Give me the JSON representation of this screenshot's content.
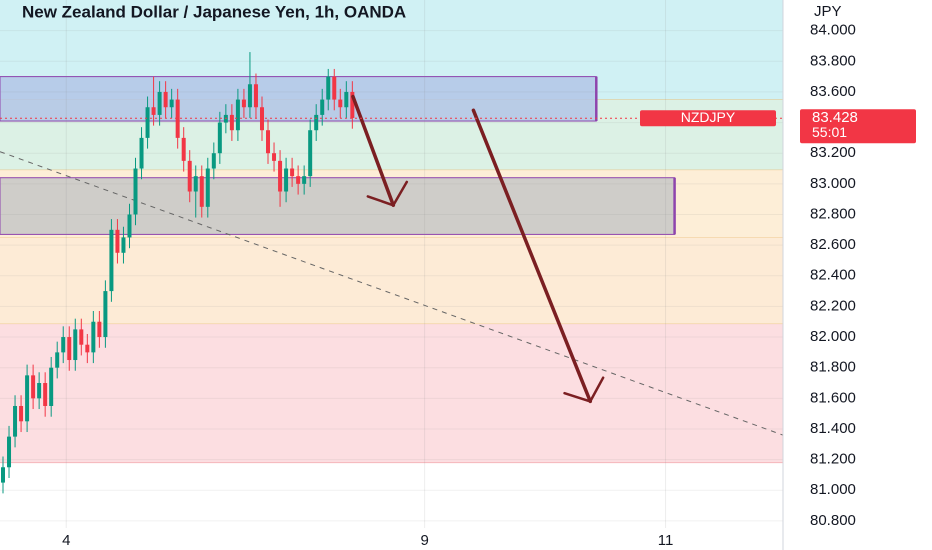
{
  "chart_data": {
    "type": "candlestick",
    "title": "New Zealand Dollar / Japanese Yen, 1h, OANDA",
    "y_unit": "JPY",
    "symbol": "NZDJPY",
    "last_price": 83.428,
    "countdown": "55:01",
    "up_color": "#089981",
    "down_color": "#f23645",
    "xlim": [
      0,
      130
    ],
    "ylim": [
      80.61,
      84.2
    ],
    "xticks": [
      {
        "value": 11,
        "label": "4"
      },
      {
        "value": 70.5,
        "label": "9"
      },
      {
        "value": 110.5,
        "label": "11"
      }
    ],
    "yticks": [
      {
        "value": 80.8,
        "label": "80.800"
      },
      {
        "value": 81.0,
        "label": "81.000"
      },
      {
        "value": 81.2,
        "label": "81.200"
      },
      {
        "value": 81.4,
        "label": "81.400"
      },
      {
        "value": 81.6,
        "label": "81.600"
      },
      {
        "value": 81.8,
        "label": "81.800"
      },
      {
        "value": 82.0,
        "label": "82.000"
      },
      {
        "value": 82.2,
        "label": "82.200"
      },
      {
        "value": 82.4,
        "label": "82.400"
      },
      {
        "value": 82.6,
        "label": "82.600"
      },
      {
        "value": 82.8,
        "label": "82.800"
      },
      {
        "value": 83.0,
        "label": "83.000"
      },
      {
        "value": 83.2,
        "label": "83.200"
      },
      {
        "value": 83.4,
        "label": "83.400"
      },
      {
        "value": 83.6,
        "label": "83.600"
      },
      {
        "value": 83.8,
        "label": "83.800"
      },
      {
        "value": 84.0,
        "label": "84.000"
      }
    ],
    "grid": true,
    "zones": [
      {
        "x": [
          0,
          130
        ],
        "y": [
          83.55,
          84.2
        ],
        "color": "#c8eef2"
      },
      {
        "x": [
          0,
          130
        ],
        "y": [
          83.09,
          83.55
        ],
        "color": "#d6efe0"
      },
      {
        "x": [
          0,
          130
        ],
        "y": [
          82.65,
          83.09
        ],
        "color": "#fdebd0"
      },
      {
        "x": [
          0,
          130
        ],
        "y": [
          82.085,
          82.65
        ],
        "color": "#fde7cf"
      },
      {
        "x": [
          0,
          130
        ],
        "y": [
          81.18,
          82.085
        ],
        "color": "#fbd8dc"
      },
      {
        "x": [
          0,
          112
        ],
        "y": [
          82.67,
          83.04
        ],
        "color": "#c7c7c7",
        "edge": "#8e44ad"
      },
      {
        "x": [
          0,
          99
        ],
        "y": [
          83.41,
          83.7
        ],
        "color": "#b3c6e6",
        "edge": "#8e44ad"
      }
    ],
    "trend_line": {
      "x": [
        0,
        130
      ],
      "y": [
        83.21,
        81.36
      ],
      "color": "#666666"
    },
    "arrows": [
      {
        "x": [
          58.6,
          65.3
        ],
        "y": [
          83.57,
          82.86
        ],
        "color": "#7b1f22"
      },
      {
        "x": [
          78.6,
          98
        ],
        "y": [
          83.48,
          81.58
        ],
        "color": "#7b1f22"
      }
    ],
    "x": [
      0,
      1,
      2,
      3,
      4,
      5,
      6,
      7,
      8,
      9,
      10,
      11,
      12,
      13,
      14,
      15,
      16,
      17,
      18,
      19,
      20,
      21,
      22,
      23,
      24,
      25,
      26,
      27,
      28,
      29,
      30,
      31,
      32,
      33,
      34,
      35,
      36,
      37,
      38,
      39,
      40,
      41,
      42,
      43,
      44,
      45,
      46,
      47,
      48,
      49,
      50,
      51,
      52,
      53,
      54,
      55,
      56,
      57,
      58
    ],
    "open": [
      81.05,
      81.15,
      81.35,
      81.55,
      81.45,
      81.75,
      81.6,
      81.7,
      81.55,
      81.8,
      81.9,
      82.0,
      81.85,
      82.05,
      81.95,
      81.9,
      82.1,
      82.0,
      82.3,
      82.7,
      82.55,
      82.65,
      82.8,
      83.1,
      83.3,
      83.5,
      83.45,
      83.6,
      83.5,
      83.55,
      83.3,
      83.15,
      82.95,
      83.05,
      82.85,
      83.1,
      83.2,
      83.4,
      83.45,
      83.35,
      83.55,
      83.5,
      83.65,
      83.5,
      83.35,
      83.2,
      83.15,
      82.95,
      83.1,
      83.05,
      83.0,
      83.05,
      83.35,
      83.45,
      83.55,
      83.7,
      83.55,
      83.5,
      83.6
    ],
    "high": [
      81.22,
      81.42,
      81.62,
      81.62,
      81.82,
      81.82,
      81.77,
      81.77,
      81.87,
      81.97,
      82.07,
      82.07,
      82.12,
      82.12,
      82.02,
      82.17,
      82.17,
      82.37,
      82.77,
      82.77,
      82.72,
      82.87,
      83.17,
      83.37,
      83.57,
      83.7,
      83.67,
      83.67,
      83.62,
      83.62,
      83.37,
      83.22,
      83.12,
      83.12,
      83.17,
      83.27,
      83.47,
      83.52,
      83.52,
      83.62,
      83.62,
      83.86,
      83.72,
      83.57,
      83.42,
      83.27,
      83.22,
      83.17,
      83.17,
      83.12,
      83.12,
      83.42,
      83.52,
      83.62,
      83.75,
      83.75,
      83.62,
      83.67,
      83.67
    ],
    "low": [
      80.98,
      81.08,
      81.28,
      81.38,
      81.38,
      81.53,
      81.53,
      81.48,
      81.48,
      81.73,
      81.83,
      81.78,
      81.78,
      81.88,
      81.83,
      81.83,
      81.93,
      81.93,
      82.23,
      82.48,
      82.48,
      82.58,
      82.73,
      83.03,
      83.23,
      83.38,
      83.38,
      83.43,
      83.43,
      83.23,
      83.08,
      82.88,
      82.78,
      82.78,
      82.78,
      83.03,
      83.13,
      83.33,
      83.28,
      83.28,
      83.43,
      83.43,
      83.43,
      83.28,
      83.13,
      83.08,
      82.85,
      82.88,
      82.98,
      82.93,
      82.93,
      82.98,
      83.28,
      83.38,
      83.48,
      83.48,
      83.43,
      83.43,
      83.36
    ],
    "close": [
      81.15,
      81.35,
      81.55,
      81.45,
      81.75,
      81.6,
      81.7,
      81.55,
      81.8,
      81.9,
      82.0,
      81.85,
      82.05,
      81.95,
      81.9,
      82.1,
      82.0,
      82.3,
      82.7,
      82.55,
      82.65,
      82.8,
      83.1,
      83.3,
      83.5,
      83.45,
      83.6,
      83.5,
      83.55,
      83.3,
      83.15,
      82.95,
      83.05,
      82.85,
      83.1,
      83.2,
      83.4,
      83.45,
      83.35,
      83.55,
      83.5,
      83.65,
      83.5,
      83.35,
      83.2,
      83.15,
      82.95,
      83.1,
      83.05,
      83.0,
      83.05,
      83.35,
      83.45,
      83.55,
      83.7,
      83.55,
      83.5,
      83.6,
      83.43
    ]
  }
}
